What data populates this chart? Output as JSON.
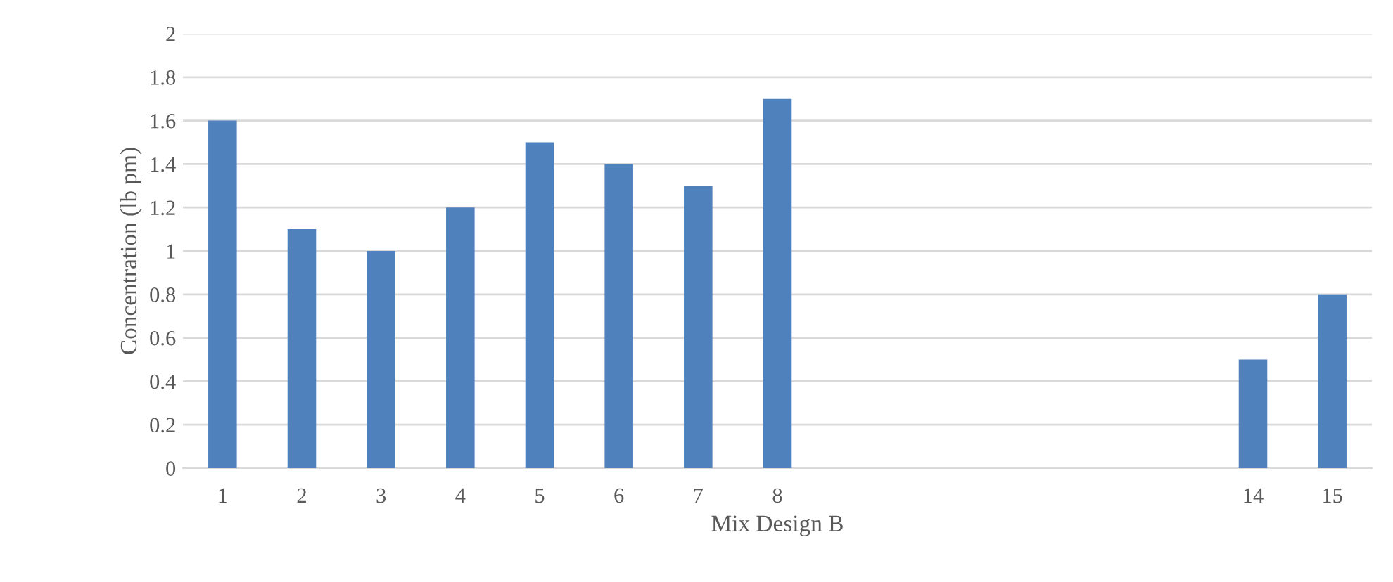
{
  "chart_data": {
    "type": "bar",
    "xlabel": "Mix Design B",
    "ylabel": "Concentration (lb pm)",
    "categories": [
      "1",
      "2",
      "3",
      "4",
      "5",
      "6",
      "7",
      "8",
      null,
      null,
      null,
      null,
      null,
      "14",
      "15"
    ],
    "values": [
      1.6,
      1.1,
      1.0,
      1.2,
      1.5,
      1.4,
      1.3,
      1.7,
      null,
      null,
      null,
      null,
      null,
      0.5,
      0.8
    ],
    "color": "#4f81bd",
    "ylim": [
      0,
      2
    ],
    "yticks": [
      0,
      0.2,
      0.4,
      0.6,
      0.8,
      1,
      1.2,
      1.4,
      1.6,
      1.8,
      2
    ],
    "grid": "y",
    "legend": false
  }
}
